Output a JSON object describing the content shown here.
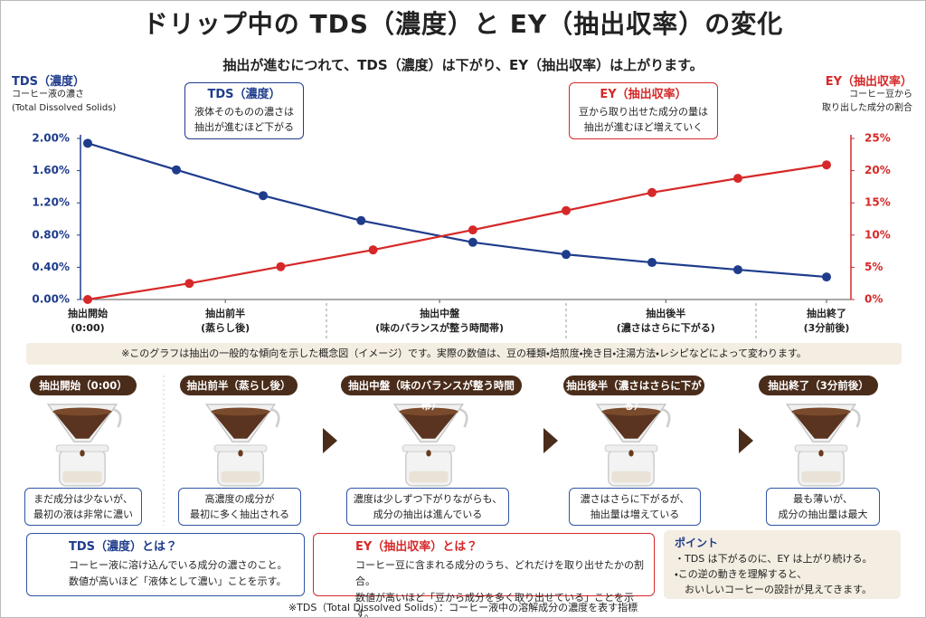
{
  "header": {
    "title": "ドリップ中の TDS（濃度）と EY（抽出収率）の変化",
    "subtitle": "抽出が進むにつれて、TDS（濃度）は下がり、EY（抽出収率）は上がります。"
  },
  "chart_data": {
    "type": "line",
    "y_axis_title": "TDS（濃度）",
    "y_axis_subtitle": "コーヒー液の濃さ\n(Total Dissolved Solids)",
    "y2_axis_title": "EY（抽出収率）",
    "y2_axis_subtitle": "コーヒー豆から\n取り出した成分の割合",
    "annotations": [
      {
        "title": "TDS（濃度）",
        "text": "液体そのものの濃さは\n抽出が進むほど下がる"
      },
      {
        "title": "EY（抽出収率）",
        "text": "豆から取り出せた成分の量は\n抽出が進むほど増えていく"
      }
    ],
    "xlim": [
      0,
      8
    ],
    "xticks": [
      {
        "value": 0,
        "label": "抽出開始\n(0:00)"
      },
      {
        "value": 1.49,
        "label": "抽出前半\n(蒸らし後)"
      },
      {
        "value": 3.81,
        "label": "抽出中盤\n(味のバランスが整う時間帯)"
      },
      {
        "value": 6.26,
        "label": "抽出後半\n(濃さはさらに下がる)"
      },
      {
        "value": 8,
        "label": "抽出終了\n(3分前後)"
      }
    ],
    "ylim": [
      0,
      2
    ],
    "yticks": [
      {
        "value": 0,
        "label": "0.00%"
      },
      {
        "value": 0.4,
        "label": "0.40%"
      },
      {
        "value": 0.8,
        "label": "0.80%"
      },
      {
        "value": 1.2,
        "label": "1.20%"
      },
      {
        "value": 1.6,
        "label": "1.60%"
      },
      {
        "value": 2,
        "label": "2.00%"
      }
    ],
    "y2lim": [
      0,
      25
    ],
    "y2ticks": [
      {
        "value": 0,
        "label": "0%"
      },
      {
        "value": 5,
        "label": "5%"
      },
      {
        "value": 10,
        "label": "10%"
      },
      {
        "value": 15,
        "label": "15%"
      },
      {
        "value": 20,
        "label": "20%"
      },
      {
        "value": 25,
        "label": "25%"
      }
    ],
    "series": [
      {
        "color": "#1f3c8c",
        "x": [
          0,
          0.96,
          1.9,
          2.96,
          4.17,
          5.18,
          6.11,
          7.04,
          8
        ],
        "values": [
          1.94,
          1.61,
          1.29,
          0.98,
          0.71,
          0.56,
          0.46,
          0.37,
          0.28
        ]
      },
      {
        "color": "#d62828",
        "axis": "y2",
        "x": [
          0,
          1.1,
          2.09,
          3.09,
          4.17,
          5.18,
          6.11,
          7.04,
          8
        ],
        "values": [
          0,
          2.5,
          5.1,
          7.7,
          10.8,
          13.8,
          16.6,
          18.8,
          20.9
        ]
      }
    ]
  },
  "note": "※このグラフは抽出の一般的な傾向を示した概念図（イメージ）です。実際の数値は、豆の種類・焙煎度・挽き目・注湯方法・レシピなどによって変わります。",
  "stages": [
    {
      "title": "抽出開始（0:00）",
      "caption": "まだ成分は少ないが、\n最初の液は非常に濃い"
    },
    {
      "title": "抽出前半（蒸らし後）",
      "caption": "高濃度の成分が\n最初に多く抽出される"
    },
    {
      "title": "抽出中盤（味のバランスが整う時間帯）",
      "caption": "濃度は少しずつ下がりながらも、\n成分の抽出は進んでいる"
    },
    {
      "title": "抽出後半（濃さはさらに下がる）",
      "caption": "濃さはさらに下がるが、\n抽出量は増えている"
    },
    {
      "title": "抽出終了（3分前後）",
      "caption": "最も薄いが、\n成分の抽出量は最大"
    }
  ],
  "definitions": [
    {
      "title": "TDS（濃度）とは？",
      "text": "コーヒー液に溶け込んでいる成分の濃さのこと。\n数値が高いほど「液体として濃い」ことを示す。"
    },
    {
      "title": "EY（抽出収率）とは？",
      "text": "コーヒー豆に含まれる成分のうち、どれだけを取り出せたかの割合。\n数値が高いほど「豆から成分を多く取り出せている」ことを示す。"
    }
  ],
  "point": {
    "title": "ポイント",
    "items": [
      "・TDS は下がるのに、EY は上がり続ける。",
      "・この逆の動きを理解すると、\n　おいしいコーヒーの設計が見えてきます。"
    ]
  },
  "footer": "※TDS（Total Dissolved Solids）：コーヒー液中の溶解成分の濃度を表す指標"
}
